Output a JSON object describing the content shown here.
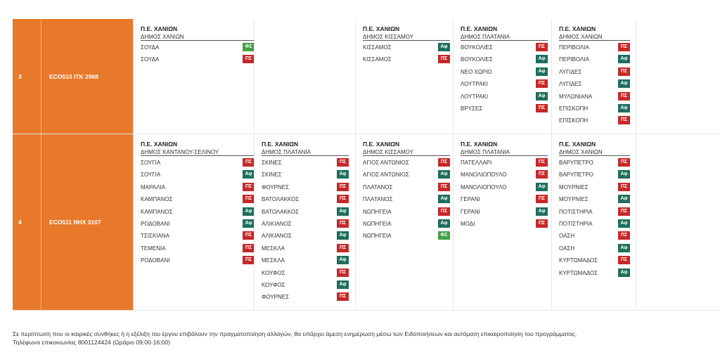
{
  "badge_colors": {
    "ps": "#c62828",
    "af": "#1e6e5c",
    "fs": "#43a047",
    "row_bg": "#e8792b"
  },
  "rows": [
    {
      "num": "3",
      "code": "ECO510  ΙΤΚ 2968",
      "routes": [
        {
          "pe": "Π.Ε. ΧΑΝΙΩΝ",
          "dimos": "ΔΗΜΟΣ ΧΑΝΙΩΝ",
          "stops": [
            {
              "name": "ΣΟΥΔΑ",
              "badge": "ΦΣ",
              "kind": "fs"
            },
            {
              "name": "ΣΟΥΔΑ",
              "badge": "ΠΣ",
              "kind": "ps"
            }
          ]
        },
        null,
        {
          "pe": "Π.Ε. ΧΑΝΙΩΝ",
          "dimos": "ΔΗΜΟΣ ΚΙΣΣΑΜΟΥ",
          "stops": [
            {
              "name": "ΚΙΣΣΑΜΟΣ",
              "badge": "Αφ",
              "kind": "af"
            },
            {
              "name": "ΚΙΣΣΑΜΟΣ",
              "badge": "ΠΣ",
              "kind": "ps"
            }
          ]
        },
        {
          "pe": "Π.Ε. ΧΑΝΙΩΝ",
          "dimos": "ΔΗΜΟΣ ΠΛΑΤΑΝΙΑ",
          "stops": [
            {
              "name": "ΒΟΥΚΟΛΙΕΣ",
              "badge": "ΠΣ",
              "kind": "ps"
            },
            {
              "name": "ΒΟΥΚΟΛΙΕΣ",
              "badge": "Αφ",
              "kind": "af"
            },
            {
              "name": "ΝΕΟ ΧΩΡΙΟ",
              "badge": "Αφ",
              "kind": "af"
            },
            {
              "name": "ΛΟΥΤΡΑΚΙ",
              "badge": "ΠΣ",
              "kind": "ps"
            },
            {
              "name": "ΛΟΥΤΡΑΚΙ",
              "badge": "Αφ",
              "kind": "af"
            },
            {
              "name": "ΒΡΥΣΕΣ",
              "badge": "ΠΣ",
              "kind": "ps"
            }
          ]
        },
        {
          "pe": "Π.Ε. ΧΑΝΙΩΝ",
          "dimos": "ΔΗΜΟΣ ΧΑΝΙΩΝ",
          "stops": [
            {
              "name": "ΠΕΡΙΒΟΛΙΑ",
              "badge": "ΠΣ",
              "kind": "ps"
            },
            {
              "name": "ΠΕΡΙΒΟΛΙΑ",
              "badge": "Αφ",
              "kind": "af"
            },
            {
              "name": "ΛΥΓΙΔΕΣ",
              "badge": "ΠΣ",
              "kind": "ps"
            },
            {
              "name": "ΛΥΓΙΔΕΣ",
              "badge": "Αφ",
              "kind": "af"
            },
            {
              "name": "ΜΥΛΩΝΙΑΝΑ",
              "badge": "ΠΣ",
              "kind": "ps"
            },
            {
              "name": "ΕΠΙΣΚΟΠΗ",
              "badge": "Αφ",
              "kind": "af"
            },
            {
              "name": "ΕΠΙΣΚΟΠΗ",
              "badge": "ΠΣ",
              "kind": "ps"
            }
          ]
        }
      ]
    },
    {
      "num": "4",
      "code": "ECO511  ΝΗΧ 3107",
      "routes": [
        {
          "pe": "Π.Ε. ΧΑΝΙΩΝ",
          "dimos": "ΔΗΜΟΣ ΚΑΝΤΑΝΟΥ-ΣΕΛΙΝΟΥ",
          "stops": [
            {
              "name": "ΣΟΥΓΙΑ",
              "badge": "ΠΣ",
              "kind": "ps"
            },
            {
              "name": "ΣΟΥΓΙΑ",
              "badge": "Αφ",
              "kind": "af"
            },
            {
              "name": "ΜΑΡΑΛΙΑ",
              "badge": "ΠΣ",
              "kind": "ps"
            },
            {
              "name": "ΚΑΜΠΑΝΟΣ",
              "badge": "ΠΣ",
              "kind": "ps"
            },
            {
              "name": "ΚΑΜΠΑΝΟΣ",
              "badge": "Αφ",
              "kind": "af"
            },
            {
              "name": "ΡΟΔΟΒΑΝΙ",
              "badge": "Αφ",
              "kind": "af"
            },
            {
              "name": "ΤΣΙΣΚΙΑΝΑ",
              "badge": "ΠΣ",
              "kind": "ps"
            },
            {
              "name": "ΤΕΜΕΝΙΑ",
              "badge": "ΠΣ",
              "kind": "ps"
            },
            {
              "name": "ΡΟΔΟΒΑΝΙ",
              "badge": "ΠΣ",
              "kind": "ps"
            }
          ]
        },
        {
          "pe": "Π.Ε. ΧΑΝΙΩΝ",
          "dimos": "ΔΗΜΟΣ ΠΛΑΤΑΝΙΑ",
          "stops": [
            {
              "name": "ΣΚΙΝΕΣ",
              "badge": "ΠΣ",
              "kind": "ps"
            },
            {
              "name": "ΣΚΙΝΕΣ",
              "badge": "Αφ",
              "kind": "af"
            },
            {
              "name": "ΦΟΥΡΝΕΣ",
              "badge": "ΠΣ",
              "kind": "ps"
            },
            {
              "name": "ΒΑΤΟΛΑΚΚΟΣ",
              "badge": "ΠΣ",
              "kind": "ps"
            },
            {
              "name": "ΒΑΤΟΛΑΚΚΟΣ",
              "badge": "Αφ",
              "kind": "af"
            },
            {
              "name": "ΑΛΙΚΙΑΝΟΣ",
              "badge": "ΠΣ",
              "kind": "ps"
            },
            {
              "name": "ΑΛΙΚΙΑΝΟΣ",
              "badge": "Αφ",
              "kind": "af"
            },
            {
              "name": "ΜΕΣΚΛΑ",
              "badge": "ΠΣ",
              "kind": "ps"
            },
            {
              "name": "ΜΕΣΚΛΑ",
              "badge": "Αφ",
              "kind": "af"
            },
            {
              "name": "ΚΟΥΦΟΣ",
              "badge": "ΠΣ",
              "kind": "ps"
            },
            {
              "name": "ΚΟΥΦΟΣ",
              "badge": "Αφ",
              "kind": "af"
            },
            {
              "name": "ΦΟΥΡΝΕΣ",
              "badge": "ΠΣ",
              "kind": "ps"
            }
          ]
        },
        {
          "pe": "Π.Ε. ΧΑΝΙΩΝ",
          "dimos": "ΔΗΜΟΣ ΚΙΣΣΑΜΟΥ",
          "stops": [
            {
              "name": "ΑΓΙΟΣ ΑΝΤΩΝΙΟΣ",
              "badge": "ΠΣ",
              "kind": "ps"
            },
            {
              "name": "ΑΓΙΟΣ ΑΝΤΩΝΙΟΣ",
              "badge": "Αφ",
              "kind": "af"
            },
            {
              "name": "ΠΛΑΤΑΝΟΣ",
              "badge": "ΠΣ",
              "kind": "ps"
            },
            {
              "name": "ΠΛΑΤΑΝΟΣ",
              "badge": "Αφ",
              "kind": "af"
            },
            {
              "name": "ΝΩΠΗΓΕΙΑ",
              "badge": "ΠΣ",
              "kind": "ps"
            },
            {
              "name": "ΝΩΠΗΓΕΙΑ",
              "badge": "Αφ",
              "kind": "af"
            },
            {
              "name": "ΝΩΠΗΓΕΙΑ",
              "badge": "ΦΣ",
              "kind": "fs"
            }
          ]
        },
        {
          "pe": "Π.Ε. ΧΑΝΙΩΝ",
          "dimos": "ΔΗΜΟΣ ΠΛΑΤΑΝΙΑ",
          "stops": [
            {
              "name": "ΠΑΤΕΛΛΑΡΙ",
              "badge": "ΠΣ",
              "kind": "ps"
            },
            {
              "name": "ΜΑΝΟΛΙΟΠΟΥΛΟ",
              "badge": "ΠΣ",
              "kind": "ps"
            },
            {
              "name": "ΜΑΝΟΛΙΟΠΟΥΛΟ",
              "badge": "Αφ",
              "kind": "af"
            },
            {
              "name": "ΓΕΡΑΝΙ",
              "badge": "ΠΣ",
              "kind": "ps"
            },
            {
              "name": "ΓΕΡΑΝΙ",
              "badge": "Αφ",
              "kind": "af"
            },
            {
              "name": "ΜΟΔΙ",
              "badge": "ΠΣ",
              "kind": "ps"
            }
          ]
        },
        {
          "pe": "Π.Ε. ΧΑΝΙΩΝ",
          "dimos": "ΔΗΜΟΣ ΧΑΝΙΩΝ",
          "stops": [
            {
              "name": "ΒΑΡΥΠΕΤΡΟ",
              "badge": "ΠΣ",
              "kind": "ps"
            },
            {
              "name": "ΒΑΡΥΠΕΤΡΟ",
              "badge": "Αφ",
              "kind": "af"
            },
            {
              "name": "ΜΟΥΡΝΙΕΣ",
              "badge": "ΠΣ",
              "kind": "ps"
            },
            {
              "name": "ΜΟΥΡΝΙΕΣ",
              "badge": "Αφ",
              "kind": "af"
            },
            {
              "name": "ΠΟΤΙΣΤΗΡΙΑ",
              "badge": "ΠΣ",
              "kind": "ps"
            },
            {
              "name": "ΠΟΤΙΣΤΗΡΙΑ",
              "badge": "Αφ",
              "kind": "af"
            },
            {
              "name": "ΟΑΣΗ",
              "badge": "ΠΣ",
              "kind": "ps"
            },
            {
              "name": "ΟΑΣΗ",
              "badge": "Αφ",
              "kind": "af"
            },
            {
              "name": "ΚΥΡΤΩΜΑΔΟΣ",
              "badge": "ΠΣ",
              "kind": "ps"
            },
            {
              "name": "ΚΥΡΤΩΜΑΔΟΣ",
              "badge": "Αφ",
              "kind": "af"
            }
          ]
        }
      ]
    }
  ],
  "footer": {
    "notice": "Σε περίπτωση που οι καιρικές συνθήκες ή η εξέλιξη του έργου επιβάλουν την πραγματοποίηση αλλαγών, θα υπάρχει άμεση ενημέρωση μέσω των Ειδοποιήσεων και αυτόματη επικαιροποίηση του προγράμματος.",
    "phone": "Τηλέφωνα επικοινωνίας 8001124424 (Ωράριο 09:00-16:00)"
  }
}
